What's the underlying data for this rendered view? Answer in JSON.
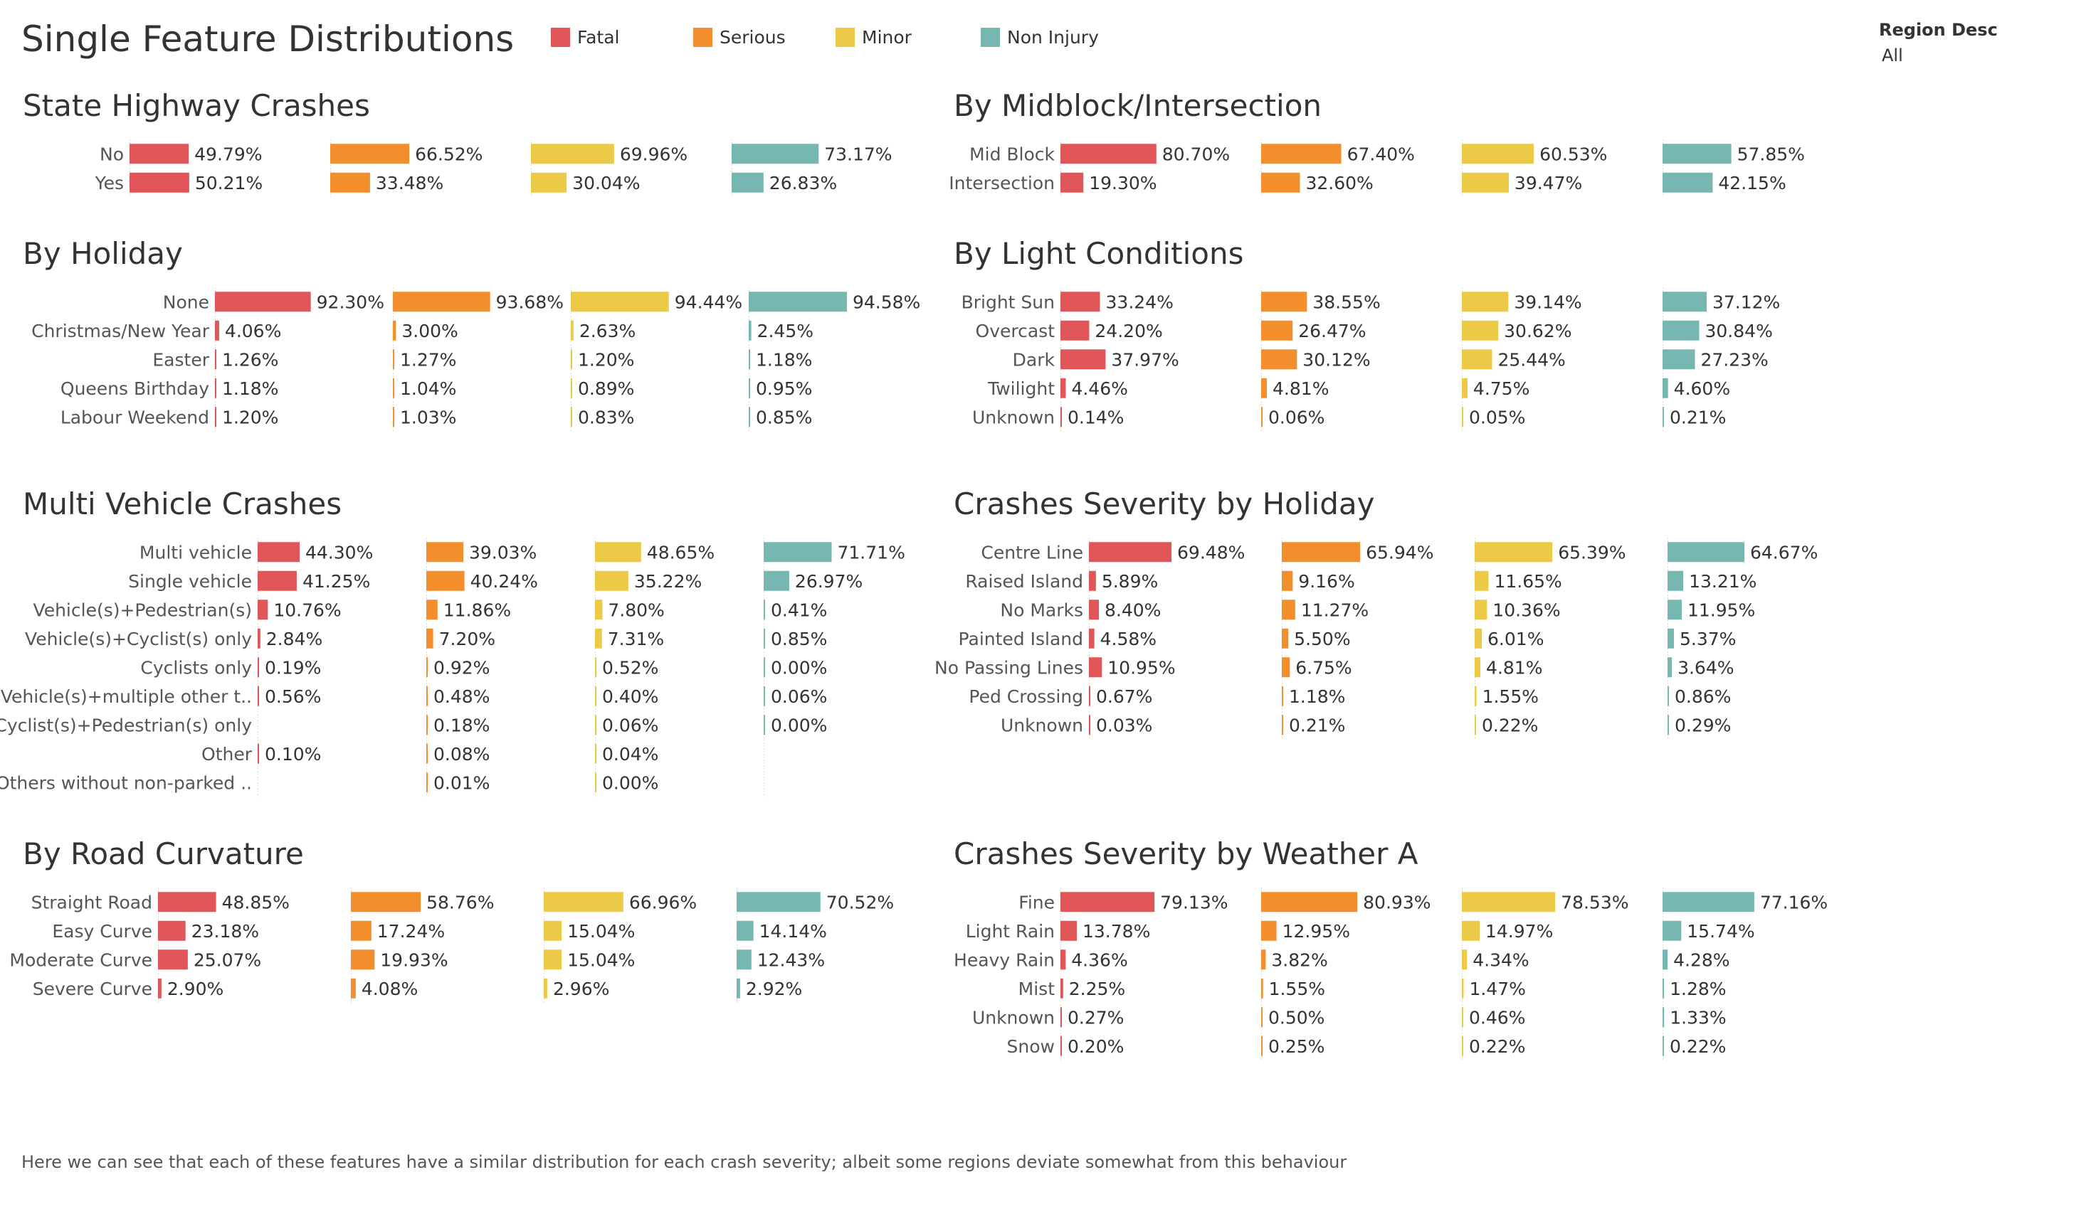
{
  "dashboard": {
    "title": "Single Feature Distributions",
    "footnote": "Here we can see that each of these features have a similar distribution for each crash severity; albeit some regions deviate somewhat from this behaviour"
  },
  "legend": [
    {
      "label": "Fatal",
      "color": "#e15759"
    },
    {
      "label": "Serious",
      "color": "#f28e2b"
    },
    {
      "label": "Minor",
      "color": "#edc948"
    },
    {
      "label": "Non Injury",
      "color": "#76b7b2"
    }
  ],
  "filter": {
    "label": "Region Desc",
    "value": "All"
  },
  "chart_data": [
    {
      "type": "bar",
      "title": "State Highway Crashes",
      "categories": [
        "No",
        "Yes"
      ],
      "series": [
        {
          "name": "Fatal",
          "values": [
            49.79,
            50.21
          ],
          "labels": [
            "49.79%",
            "50.21%"
          ]
        },
        {
          "name": "Serious",
          "values": [
            66.52,
            33.48
          ],
          "labels": [
            "66.52%",
            "33.48%"
          ]
        },
        {
          "name": "Minor",
          "values": [
            69.96,
            30.04
          ],
          "labels": [
            "69.96%",
            "30.04%"
          ]
        },
        {
          "name": "Non Injury",
          "values": [
            73.17,
            26.83
          ],
          "labels": [
            "73.17%",
            "26.83%"
          ]
        }
      ]
    },
    {
      "type": "bar",
      "title": "By Midblock/Intersection",
      "categories": [
        "Mid Block",
        "Intersection"
      ],
      "series": [
        {
          "name": "Fatal",
          "values": [
            80.7,
            19.3
          ],
          "labels": [
            "80.70%",
            "19.30%"
          ]
        },
        {
          "name": "Serious",
          "values": [
            67.4,
            32.6
          ],
          "labels": [
            "67.40%",
            "32.60%"
          ]
        },
        {
          "name": "Minor",
          "values": [
            60.53,
            39.47
          ],
          "labels": [
            "60.53%",
            "39.47%"
          ]
        },
        {
          "name": "Non Injury",
          "values": [
            57.85,
            42.15
          ],
          "labels": [
            "57.85%",
            "42.15%"
          ]
        }
      ]
    },
    {
      "type": "bar",
      "title": "By Holiday",
      "categories": [
        "None",
        "Christmas/New Year",
        "Easter",
        "Queens Birthday",
        "Labour Weekend"
      ],
      "series": [
        {
          "name": "Fatal",
          "values": [
            92.3,
            4.06,
            1.26,
            1.18,
            1.2
          ],
          "labels": [
            "92.30%",
            "4.06%",
            "1.26%",
            "1.18%",
            "1.20%"
          ]
        },
        {
          "name": "Serious",
          "values": [
            93.68,
            3.0,
            1.27,
            1.04,
            1.03
          ],
          "labels": [
            "93.68%",
            "3.00%",
            "1.27%",
            "1.04%",
            "1.03%"
          ]
        },
        {
          "name": "Minor",
          "values": [
            94.44,
            2.63,
            1.2,
            0.89,
            0.83
          ],
          "labels": [
            "94.44%",
            "2.63%",
            "1.20%",
            "0.89%",
            "0.83%"
          ]
        },
        {
          "name": "Non Injury",
          "values": [
            94.58,
            2.45,
            1.18,
            0.95,
            0.85
          ],
          "labels": [
            "94.58%",
            "2.45%",
            "1.18%",
            "0.95%",
            "0.85%"
          ]
        }
      ]
    },
    {
      "type": "bar",
      "title": "By Light Conditions",
      "categories": [
        "Bright Sun",
        "Overcast",
        "Dark",
        "Twilight",
        "Unknown"
      ],
      "series": [
        {
          "name": "Fatal",
          "values": [
            33.24,
            24.2,
            37.97,
            4.46,
            0.14
          ],
          "labels": [
            "33.24%",
            "24.20%",
            "37.97%",
            "4.46%",
            "0.14%"
          ]
        },
        {
          "name": "Serious",
          "values": [
            38.55,
            26.47,
            30.12,
            4.81,
            0.06
          ],
          "labels": [
            "38.55%",
            "26.47%",
            "30.12%",
            "4.81%",
            "0.06%"
          ]
        },
        {
          "name": "Minor",
          "values": [
            39.14,
            30.62,
            25.44,
            4.75,
            0.05
          ],
          "labels": [
            "39.14%",
            "30.62%",
            "25.44%",
            "4.75%",
            "0.05%"
          ]
        },
        {
          "name": "Non Injury",
          "values": [
            37.12,
            30.84,
            27.23,
            4.6,
            0.21
          ],
          "labels": [
            "37.12%",
            "30.84%",
            "27.23%",
            "4.60%",
            "0.21%"
          ]
        }
      ]
    },
    {
      "type": "bar",
      "title": "Multi Vehicle Crashes",
      "categories": [
        "Multi vehicle",
        "Single vehicle",
        "Vehicle(s)+Pedestrian(s)",
        "Vehicle(s)+Cyclist(s) only",
        "Cyclists only",
        "Vehicle(s)+multiple other t..",
        "Cyclist(s)+Pedestrian(s) only",
        "Other",
        "Others without non-parked .."
      ],
      "series": [
        {
          "name": "Fatal",
          "values": [
            44.3,
            41.25,
            10.76,
            2.84,
            0.19,
            0.56,
            null,
            0.1,
            null
          ],
          "labels": [
            "44.30%",
            "41.25%",
            "10.76%",
            "2.84%",
            "0.19%",
            "0.56%",
            "",
            "0.10%",
            ""
          ]
        },
        {
          "name": "Serious",
          "values": [
            39.03,
            40.24,
            11.86,
            7.2,
            0.92,
            0.48,
            0.18,
            0.08,
            0.01
          ],
          "labels": [
            "39.03%",
            "40.24%",
            "11.86%",
            "7.20%",
            "0.92%",
            "0.48%",
            "0.18%",
            "0.08%",
            "0.01%"
          ]
        },
        {
          "name": "Minor",
          "values": [
            48.65,
            35.22,
            7.8,
            7.31,
            0.52,
            0.4,
            0.06,
            0.04,
            0.0
          ],
          "labels": [
            "48.65%",
            "35.22%",
            "7.80%",
            "7.31%",
            "0.52%",
            "0.40%",
            "0.06%",
            "0.04%",
            "0.00%"
          ]
        },
        {
          "name": "Non Injury",
          "values": [
            71.71,
            26.97,
            0.41,
            0.85,
            0.0,
            0.06,
            0.0,
            null,
            null
          ],
          "labels": [
            "71.71%",
            "26.97%",
            "0.41%",
            "0.85%",
            "0.00%",
            "0.06%",
            "0.00%",
            "",
            ""
          ]
        }
      ]
    },
    {
      "type": "bar",
      "title": "Crashes Severity  by Holiday",
      "categories": [
        "Centre Line",
        "Raised Island",
        "No Marks",
        "Painted Island",
        "No Passing Lines",
        "Ped Crossing",
        "Unknown"
      ],
      "series": [
        {
          "name": "Fatal",
          "values": [
            69.48,
            5.89,
            8.4,
            4.58,
            10.95,
            0.67,
            0.03
          ],
          "labels": [
            "69.48%",
            "5.89%",
            "8.40%",
            "4.58%",
            "10.95%",
            "0.67%",
            "0.03%"
          ]
        },
        {
          "name": "Serious",
          "values": [
            65.94,
            9.16,
            11.27,
            5.5,
            6.75,
            1.18,
            0.21
          ],
          "labels": [
            "65.94%",
            "9.16%",
            "11.27%",
            "5.50%",
            "6.75%",
            "1.18%",
            "0.21%"
          ]
        },
        {
          "name": "Minor",
          "values": [
            65.39,
            11.65,
            10.36,
            6.01,
            4.81,
            1.55,
            0.22
          ],
          "labels": [
            "65.39%",
            "11.65%",
            "10.36%",
            "6.01%",
            "4.81%",
            "1.55%",
            "0.22%"
          ]
        },
        {
          "name": "Non Injury",
          "values": [
            64.67,
            13.21,
            11.95,
            5.37,
            3.64,
            0.86,
            0.29
          ],
          "labels": [
            "64.67%",
            "13.21%",
            "11.95%",
            "5.37%",
            "3.64%",
            "0.86%",
            "0.29%"
          ]
        }
      ]
    },
    {
      "type": "bar",
      "title": "By Road Curvature",
      "categories": [
        "Straight Road",
        "Easy Curve",
        "Moderate Curve",
        "Severe Curve"
      ],
      "series": [
        {
          "name": "Fatal",
          "values": [
            48.85,
            23.18,
            25.07,
            2.9
          ],
          "labels": [
            "48.85%",
            "23.18%",
            "25.07%",
            "2.90%"
          ]
        },
        {
          "name": "Serious",
          "values": [
            58.76,
            17.24,
            19.93,
            4.08
          ],
          "labels": [
            "58.76%",
            "17.24%",
            "19.93%",
            "4.08%"
          ]
        },
        {
          "name": "Minor",
          "values": [
            66.96,
            15.04,
            15.04,
            2.96
          ],
          "labels": [
            "66.96%",
            "15.04%",
            "15.04%",
            "2.96%"
          ]
        },
        {
          "name": "Non Injury",
          "values": [
            70.52,
            14.14,
            12.43,
            2.92
          ],
          "labels": [
            "70.52%",
            "14.14%",
            "12.43%",
            "2.92%"
          ]
        }
      ]
    },
    {
      "type": "bar",
      "title": "Crashes Severity  by Weather A",
      "categories": [
        "Fine",
        "Light Rain",
        "Heavy Rain",
        "Mist",
        "Unknown",
        "Snow"
      ],
      "series": [
        {
          "name": "Fatal",
          "values": [
            79.13,
            13.78,
            4.36,
            2.25,
            0.27,
            0.2
          ],
          "labels": [
            "79.13%",
            "13.78%",
            "4.36%",
            "2.25%",
            "0.27%",
            "0.20%"
          ]
        },
        {
          "name": "Serious",
          "values": [
            80.93,
            12.95,
            3.82,
            1.55,
            0.5,
            0.25
          ],
          "labels": [
            "80.93%",
            "12.95%",
            "3.82%",
            "1.55%",
            "0.50%",
            "0.25%"
          ]
        },
        {
          "name": "Minor",
          "values": [
            78.53,
            14.97,
            4.34,
            1.47,
            0.46,
            0.22
          ],
          "labels": [
            "78.53%",
            "14.97%",
            "4.34%",
            "1.47%",
            "0.46%",
            "0.22%"
          ]
        },
        {
          "name": "Non Injury",
          "values": [
            77.16,
            15.74,
            4.28,
            1.28,
            1.33,
            0.22
          ],
          "labels": [
            "77.16%",
            "15.74%",
            "4.28%",
            "1.28%",
            "1.33%",
            "0.22%"
          ]
        }
      ]
    }
  ]
}
